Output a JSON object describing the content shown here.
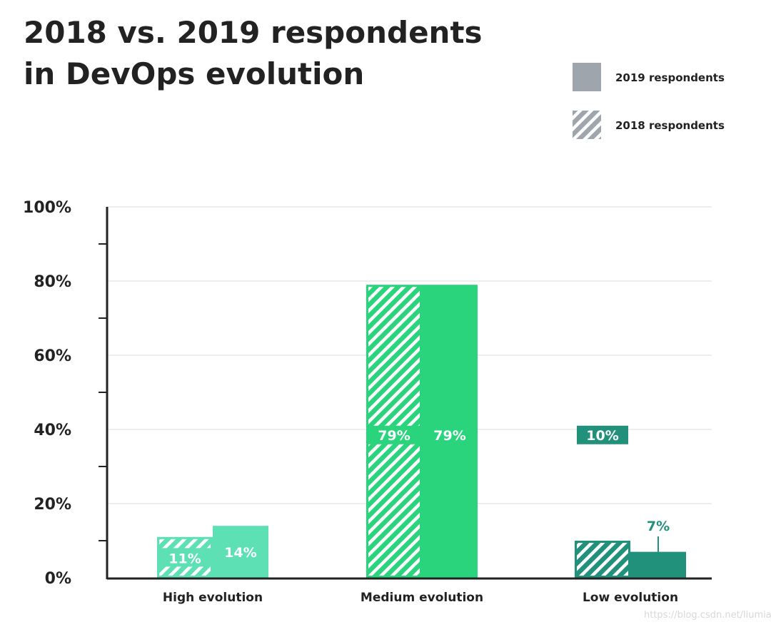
{
  "chart_data": {
    "type": "bar",
    "title": [
      "2018 vs. 2019 respondents",
      "in DevOps evolution"
    ],
    "categories": [
      "High evolution",
      "Medium evolution",
      "Low evolution"
    ],
    "series": [
      {
        "name": "2018 respondents",
        "values": [
          11,
          79,
          10
        ],
        "pattern": "hatched"
      },
      {
        "name": "2019 respondents",
        "values": [
          14,
          79,
          7
        ],
        "pattern": "solid"
      }
    ],
    "data_labels": [
      [
        "11%",
        "79%",
        "10%"
      ],
      [
        "14%",
        "79%",
        "7%"
      ]
    ],
    "category_colors": [
      "#5ce0b4",
      "#2ad47c",
      "#22917c"
    ],
    "legend_color": "#9ea5ac",
    "ylim": [
      0,
      100
    ],
    "yticks": [
      0,
      20,
      40,
      60,
      80,
      100
    ],
    "ytick_labels": [
      "0%",
      "20%",
      "40%",
      "60%",
      "80%",
      "100%"
    ],
    "grid": true,
    "legend_position": "top-right",
    "xlabel": "",
    "ylabel": ""
  },
  "watermark": "https://blog.csdn.net/liumiaocn"
}
